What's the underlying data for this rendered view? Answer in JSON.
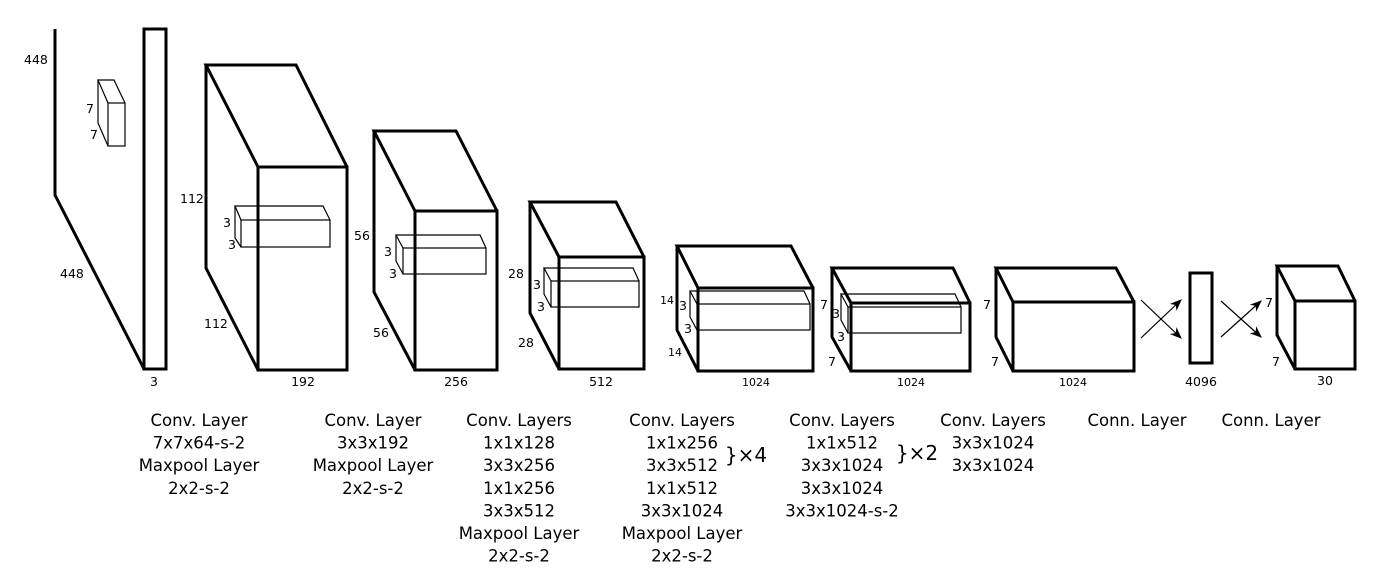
{
  "colors": {
    "stroke": "#000000",
    "background": "#ffffff"
  },
  "dims": {
    "b1": {
      "h": "448",
      "w": "448",
      "d": "3",
      "k1": "7",
      "k2": "7"
    },
    "b2": {
      "h": "112",
      "w": "112",
      "d": "192",
      "k1": "3",
      "k2": "3"
    },
    "b3": {
      "h": "56",
      "w": "56",
      "d": "256",
      "k1": "3",
      "k2": "3"
    },
    "b4": {
      "h": "28",
      "w": "28",
      "d": "512",
      "k1": "3",
      "k2": "3"
    },
    "b5": {
      "h": "14",
      "w": "14",
      "d": "1024",
      "k1": "3",
      "k2": "3"
    },
    "b6": {
      "h": "7",
      "w": "7",
      "d": "1024",
      "k1": "3",
      "k2": "3"
    },
    "b7": {
      "h": "7",
      "w": "7",
      "d": "1024"
    },
    "fc": {
      "d": "4096"
    },
    "out": {
      "h": "7",
      "w": "7",
      "d": "30"
    }
  },
  "captions": {
    "c1": [
      "Conv. Layer",
      "7x7x64-s-2",
      "Maxpool Layer",
      "2x2-s-2"
    ],
    "c2": [
      "Conv. Layer",
      "3x3x192",
      "Maxpool Layer",
      "2x2-s-2"
    ],
    "c3": [
      "Conv. Layers",
      "1x1x128",
      "3x3x256",
      "1x1x256",
      "3x3x512",
      "Maxpool Layer",
      "2x2-s-2"
    ],
    "c4": [
      "Conv. Layers",
      "1x1x256",
      "3x3x512",
      "1x1x512",
      "3x3x1024",
      "Maxpool Layer",
      "2x2-s-2"
    ],
    "c4_repeat": "}×4",
    "c5": [
      "Conv. Layers",
      "1x1x512",
      "3x3x1024",
      "3x3x1024",
      "3x3x1024-s-2"
    ],
    "c5_repeat": "}×2",
    "c6": [
      "Conv. Layers",
      "3x3x1024",
      "3x3x1024"
    ],
    "c7": [
      "Conn. Layer"
    ],
    "c8": [
      "Conn. Layer"
    ]
  }
}
